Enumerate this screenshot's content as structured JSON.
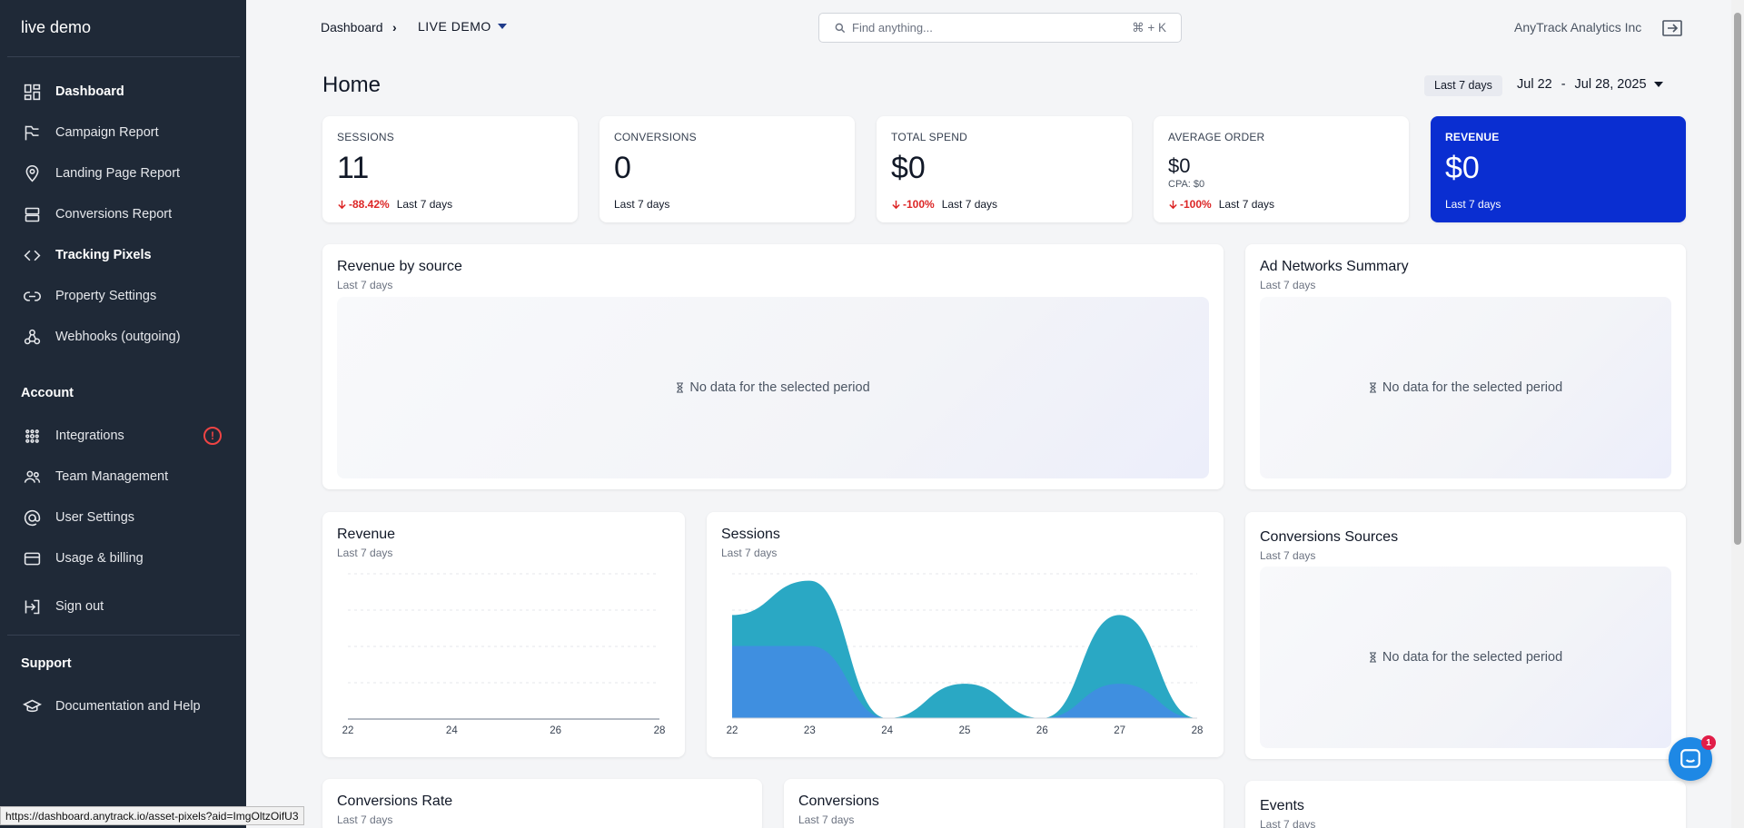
{
  "sidebar": {
    "brand": "live demo",
    "items": [
      {
        "label": "Dashboard",
        "icon": "dashboard-icon"
      },
      {
        "label": "Campaign Report",
        "icon": "campaign-icon"
      },
      {
        "label": "Landing Page Report",
        "icon": "map-pin-icon"
      },
      {
        "label": "Conversions Report",
        "icon": "stack-icon"
      },
      {
        "label": "Tracking Pixels",
        "icon": "code-icon"
      },
      {
        "label": "Property Settings",
        "icon": "link-icon"
      },
      {
        "label": "Webhooks (outgoing)",
        "icon": "webhook-icon"
      }
    ],
    "account_heading": "Account",
    "account_items": [
      {
        "label": "Integrations",
        "icon": "integrations-icon"
      },
      {
        "label": "Team Management",
        "icon": "team-icon"
      },
      {
        "label": "User Settings",
        "icon": "at-icon"
      },
      {
        "label": "Usage & billing",
        "icon": "credit-card-icon"
      }
    ],
    "sign_out": "Sign out",
    "support_heading": "Support",
    "support_items": [
      {
        "label": "Documentation and Help",
        "icon": "school-icon"
      }
    ],
    "alert_glyph": "!"
  },
  "topbar": {
    "breadcrumb_root": "Dashboard",
    "separator": "›",
    "property": "LIVE DEMO",
    "search_placeholder": "Find anything...",
    "search_shortcut": "⌘ + K",
    "company": "AnyTrack Analytics Inc"
  },
  "page": {
    "title": "Home",
    "range_chip": "Last 7 days",
    "date_from": "Jul 22",
    "date_sep": "-",
    "date_to": "Jul 28, 2025"
  },
  "kpis": [
    {
      "label": "SESSIONS",
      "value": "11",
      "delta": "-88.42%",
      "period": "Last 7 days"
    },
    {
      "label": "CONVERSIONS",
      "value": "0",
      "delta": "",
      "period": "Last 7 days"
    },
    {
      "label": "TOTAL SPEND",
      "value": "$0",
      "delta": "-100%",
      "period": "Last 7 days"
    },
    {
      "label": "AVERAGE ORDER",
      "value": "$0",
      "cpa": "CPA: $0",
      "delta": "-100%",
      "period": "Last 7 days"
    },
    {
      "label": "REVENUE",
      "value": "$0",
      "delta": "",
      "period": "Last 7 days"
    }
  ],
  "panels": {
    "revenue_by_source": {
      "title": "Revenue by source",
      "sub": "Last 7 days",
      "empty": "No data for the selected period"
    },
    "ad_networks": {
      "title": "Ad Networks Summary",
      "sub": "Last 7 days",
      "empty": "No data for the selected period"
    },
    "revenue": {
      "title": "Revenue",
      "sub": "Last 7 days"
    },
    "sessions": {
      "title": "Sessions",
      "sub": "Last 7 days"
    },
    "conversion_sources": {
      "title": "Conversions Sources",
      "sub": "Last 7 days",
      "empty": "No data for the selected period"
    },
    "conversions_rate": {
      "title": "Conversions Rate",
      "sub": "Last 7 days"
    },
    "conversions": {
      "title": "Conversions",
      "sub": "Last 7 days"
    },
    "events": {
      "title": "Events",
      "sub": "Last 7 days"
    }
  },
  "chart_data": [
    {
      "type": "line",
      "title": "Revenue",
      "x": [
        22,
        23,
        24,
        25,
        26,
        27,
        28
      ],
      "x_ticks": [
        "22",
        "24",
        "26",
        "28"
      ],
      "series": [
        {
          "values": [
            0,
            0,
            0,
            0,
            0,
            0,
            0
          ]
        }
      ]
    },
    {
      "type": "area",
      "title": "Sessions",
      "x": [
        22,
        23,
        24,
        25,
        26,
        27,
        28
      ],
      "x_ticks": [
        "22",
        "23",
        "24",
        "25",
        "26",
        "27",
        "28"
      ],
      "ylim": [
        0,
        4.2
      ],
      "series": [
        {
          "values": [
            2.1,
            2.1,
            0,
            0,
            0,
            1,
            0
          ],
          "color": "#3f8fe0"
        },
        {
          "values": [
            3,
            4,
            0,
            1,
            0,
            3,
            0
          ],
          "color": "#2aa8c4"
        }
      ]
    }
  ],
  "statusbar": {
    "url": "https://dashboard.anytrack.io/asset-pixels?aid=ImgOltzOifU3"
  },
  "chat": {
    "badge": "1"
  },
  "colors": {
    "sidebar": "#1f2937",
    "revenue_card": "#0a2ed1",
    "negative": "#dc2626",
    "sessions_back": "#2aa8c4",
    "sessions_front": "#3f8fe0"
  }
}
